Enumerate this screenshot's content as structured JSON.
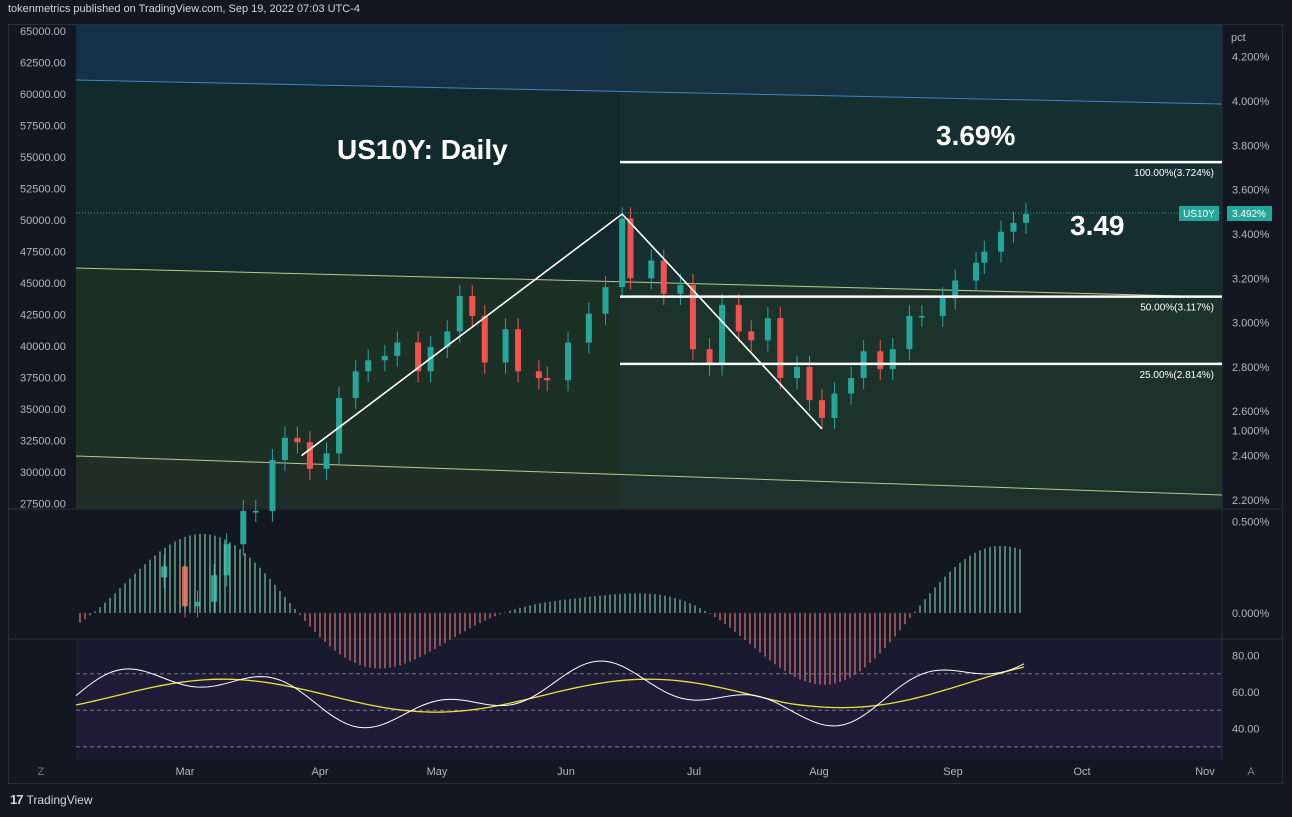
{
  "header": "tokenmetrics published on TradingView.com, Sep 19, 2022 07:03 UTC-4",
  "footer": {
    "brand": "TradingView",
    "logo": "tradingview-logo-icon"
  },
  "colors": {
    "bg": "#131722",
    "up": "#26a69a",
    "down": "#ef5350",
    "line": "#ffffff",
    "ma": "#e7e33b",
    "tag": "#26a69a"
  },
  "chart_data": [
    {
      "type": "line",
      "title": "US10Y: Daily",
      "annotations": [
        "3.69%",
        "3.49"
      ],
      "left_axis": {
        "ticks": [
          "65000.00",
          "62500.00",
          "60000.00",
          "57500.00",
          "55000.00",
          "52500.00",
          "50000.00",
          "47500.00",
          "45000.00",
          "42500.00",
          "40000.00",
          "37500.00",
          "35000.00",
          "32500.00",
          "30000.00",
          "27500.00"
        ],
        "values": [
          65000,
          62500,
          60000,
          57500,
          55000,
          52500,
          50000,
          47500,
          45000,
          42500,
          40000,
          37500,
          35000,
          32500,
          30000,
          27500
        ]
      },
      "right_axis": {
        "unit": "pct",
        "ticks": [
          "4.200%",
          "4.000%",
          "3.800%",
          "3.600%",
          "3.400%",
          "3.200%",
          "3.000%",
          "2.800%",
          "2.600%",
          "2.400%",
          "2.200%"
        ],
        "values": [
          4.2,
          4.0,
          3.8,
          3.6,
          3.4,
          3.2,
          3.0,
          2.8,
          2.6,
          2.4,
          2.2
        ]
      },
      "x_ticks": [
        "Mar",
        "Apr",
        "May",
        "Jun",
        "Jul",
        "Aug",
        "Sep",
        "Oct",
        "Nov"
      ],
      "symbol_tag": {
        "label": "US10Y",
        "value": "3.492%"
      },
      "fib_levels": [
        {
          "label": "100.00%(3.724%)",
          "value": 3.724
        },
        {
          "label": "50.00%(3.117%)",
          "value": 3.117
        },
        {
          "label": "25.00%(2.814%)",
          "value": 2.814
        }
      ],
      "close_series": [
        {
          "date": "2022-02-24",
          "v": 1.9
        },
        {
          "date": "2022-03-01",
          "v": 1.72
        },
        {
          "date": "2022-03-04",
          "v": 1.74
        },
        {
          "date": "2022-03-08",
          "v": 1.86
        },
        {
          "date": "2022-03-11",
          "v": 2.0
        },
        {
          "date": "2022-03-15",
          "v": 2.15
        },
        {
          "date": "2022-03-18",
          "v": 2.15
        },
        {
          "date": "2022-03-22",
          "v": 2.38
        },
        {
          "date": "2022-03-25",
          "v": 2.48
        },
        {
          "date": "2022-03-28",
          "v": 2.46
        },
        {
          "date": "2022-03-31",
          "v": 2.34
        },
        {
          "date": "2022-04-04",
          "v": 2.41
        },
        {
          "date": "2022-04-07",
          "v": 2.66
        },
        {
          "date": "2022-04-11",
          "v": 2.78
        },
        {
          "date": "2022-04-14",
          "v": 2.83
        },
        {
          "date": "2022-04-18",
          "v": 2.85
        },
        {
          "date": "2022-04-21",
          "v": 2.91
        },
        {
          "date": "2022-04-26",
          "v": 2.78
        },
        {
          "date": "2022-04-29",
          "v": 2.89
        },
        {
          "date": "2022-05-03",
          "v": 2.96
        },
        {
          "date": "2022-05-06",
          "v": 3.12
        },
        {
          "date": "2022-05-09",
          "v": 3.03
        },
        {
          "date": "2022-05-12",
          "v": 2.82
        },
        {
          "date": "2022-05-17",
          "v": 2.97
        },
        {
          "date": "2022-05-20",
          "v": 2.78
        },
        {
          "date": "2022-05-25",
          "v": 2.75
        },
        {
          "date": "2022-05-27",
          "v": 2.74
        },
        {
          "date": "2022-06-01",
          "v": 2.91
        },
        {
          "date": "2022-06-06",
          "v": 3.04
        },
        {
          "date": "2022-06-10",
          "v": 3.16
        },
        {
          "date": "2022-06-14",
          "v": 3.47
        },
        {
          "date": "2022-06-16",
          "v": 3.2
        },
        {
          "date": "2022-06-21",
          "v": 3.28
        },
        {
          "date": "2022-06-24",
          "v": 3.13
        },
        {
          "date": "2022-06-28",
          "v": 3.17
        },
        {
          "date": "2022-07-01",
          "v": 2.88
        },
        {
          "date": "2022-07-05",
          "v": 2.81
        },
        {
          "date": "2022-07-08",
          "v": 3.08
        },
        {
          "date": "2022-07-12",
          "v": 2.96
        },
        {
          "date": "2022-07-15",
          "v": 2.92
        },
        {
          "date": "2022-07-19",
          "v": 3.02
        },
        {
          "date": "2022-07-22",
          "v": 2.75
        },
        {
          "date": "2022-07-26",
          "v": 2.8
        },
        {
          "date": "2022-07-29",
          "v": 2.65
        },
        {
          "date": "2022-08-01",
          "v": 2.57
        },
        {
          "date": "2022-08-04",
          "v": 2.68
        },
        {
          "date": "2022-08-08",
          "v": 2.75
        },
        {
          "date": "2022-08-11",
          "v": 2.87
        },
        {
          "date": "2022-08-15",
          "v": 2.79
        },
        {
          "date": "2022-08-18",
          "v": 2.88
        },
        {
          "date": "2022-08-22",
          "v": 3.03
        },
        {
          "date": "2022-08-25",
          "v": 3.03
        },
        {
          "date": "2022-08-30",
          "v": 3.11
        },
        {
          "date": "2022-09-02",
          "v": 3.19
        },
        {
          "date": "2022-09-07",
          "v": 3.27
        },
        {
          "date": "2022-09-09",
          "v": 3.32
        },
        {
          "date": "2022-09-13",
          "v": 3.41
        },
        {
          "date": "2022-09-16",
          "v": 3.45
        },
        {
          "date": "2022-09-19",
          "v": 3.49
        }
      ]
    },
    {
      "type": "bar",
      "title": "",
      "right_axis": {
        "ticks": [
          "1.000%",
          "0.500%",
          "0.000%"
        ],
        "values": [
          1.0,
          0.5,
          0.0
        ]
      }
    },
    {
      "type": "line",
      "title": "",
      "right_axis": {
        "ticks": [
          "80.00",
          "60.00",
          "40.00"
        ],
        "values": [
          80,
          60,
          40
        ]
      },
      "bands": [
        70,
        50,
        30
      ]
    }
  ]
}
